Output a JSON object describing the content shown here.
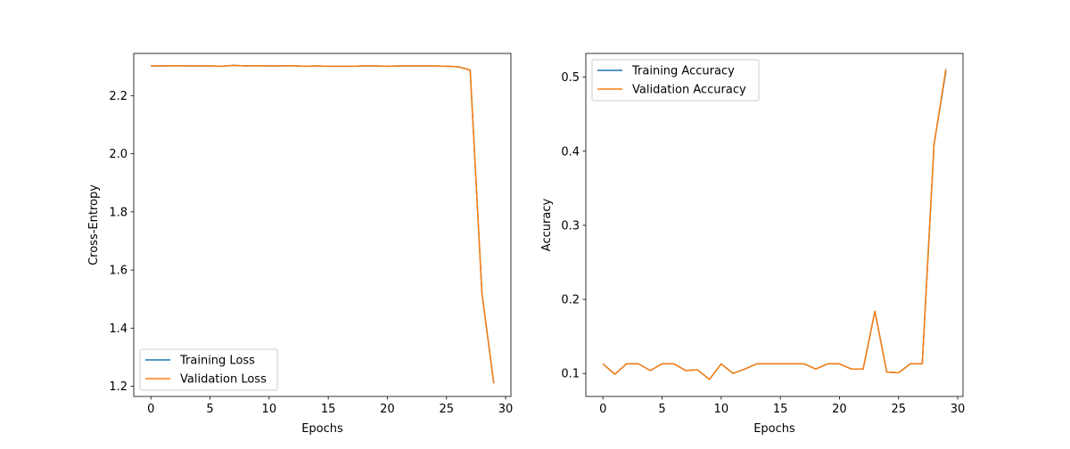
{
  "chart_data": [
    {
      "type": "line",
      "xlabel": "Epochs",
      "ylabel": "Cross-Entropy",
      "xlim": [
        -1.45,
        30.45
      ],
      "ylim": [
        1.165,
        2.345
      ],
      "xticks": [
        0,
        5,
        10,
        15,
        20,
        25,
        30
      ],
      "yticks": [
        1.2,
        1.4,
        1.6,
        1.8,
        2.0,
        2.2
      ],
      "ytick_labels": [
        "1.2",
        "1.4",
        "1.6",
        "1.8",
        "2.0",
        "2.2"
      ],
      "grid": false,
      "legend_placement": "lower-left",
      "x": [
        0,
        1,
        2,
        3,
        4,
        5,
        6,
        7,
        8,
        9,
        10,
        11,
        12,
        13,
        14,
        15,
        16,
        17,
        18,
        19,
        20,
        21,
        22,
        23,
        24,
        25,
        26,
        27,
        28,
        29
      ],
      "series": [
        {
          "name": "Training Loss",
          "color": "#1f77b4",
          "values": [
            2.302,
            2.302,
            2.303,
            2.302,
            2.302,
            2.302,
            2.301,
            2.304,
            2.302,
            2.303,
            2.302,
            2.302,
            2.303,
            2.301,
            2.302,
            2.301,
            2.301,
            2.301,
            2.302,
            2.302,
            2.301,
            2.302,
            2.302,
            2.302,
            2.302,
            2.301,
            2.299,
            2.288,
            1.52,
            1.21
          ]
        },
        {
          "name": "Validation Loss",
          "color": "#ff7f0e",
          "values": [
            2.302,
            2.302,
            2.303,
            2.302,
            2.302,
            2.302,
            2.301,
            2.304,
            2.302,
            2.303,
            2.302,
            2.302,
            2.303,
            2.301,
            2.302,
            2.301,
            2.301,
            2.301,
            2.302,
            2.302,
            2.301,
            2.302,
            2.302,
            2.302,
            2.302,
            2.301,
            2.299,
            2.288,
            1.52,
            1.21
          ]
        }
      ]
    },
    {
      "type": "line",
      "xlabel": "Epochs",
      "ylabel": "Accuracy",
      "xlim": [
        -1.45,
        30.45
      ],
      "ylim": [
        0.069,
        0.532
      ],
      "xticks": [
        0,
        5,
        10,
        15,
        20,
        25,
        30
      ],
      "yticks": [
        0.1,
        0.2,
        0.3,
        0.4,
        0.5
      ],
      "ytick_labels": [
        "0.1",
        "0.2",
        "0.3",
        "0.4",
        "0.5"
      ],
      "grid": false,
      "legend_placement": "upper-left",
      "x": [
        0,
        1,
        2,
        3,
        4,
        5,
        6,
        7,
        8,
        9,
        10,
        11,
        12,
        13,
        14,
        15,
        16,
        17,
        18,
        19,
        20,
        21,
        22,
        23,
        24,
        25,
        26,
        27,
        28,
        29
      ],
      "series": [
        {
          "name": "Training Accuracy",
          "color": "#1f77b4",
          "values": [
            0.113,
            0.099,
            0.113,
            0.113,
            0.104,
            0.113,
            0.113,
            0.104,
            0.105,
            0.092,
            0.113,
            0.1,
            0.106,
            0.113,
            0.113,
            0.113,
            0.113,
            0.113,
            0.106,
            0.113,
            0.113,
            0.106,
            0.106,
            0.184,
            0.102,
            0.101,
            0.113,
            0.113,
            0.409,
            0.508
          ]
        },
        {
          "name": "Validation Accuracy",
          "color": "#ff7f0e",
          "values": [
            0.113,
            0.099,
            0.113,
            0.113,
            0.104,
            0.113,
            0.113,
            0.104,
            0.105,
            0.092,
            0.113,
            0.1,
            0.106,
            0.113,
            0.113,
            0.113,
            0.113,
            0.113,
            0.106,
            0.113,
            0.113,
            0.106,
            0.106,
            0.184,
            0.102,
            0.101,
            0.113,
            0.113,
            0.409,
            0.511
          ]
        }
      ]
    }
  ]
}
